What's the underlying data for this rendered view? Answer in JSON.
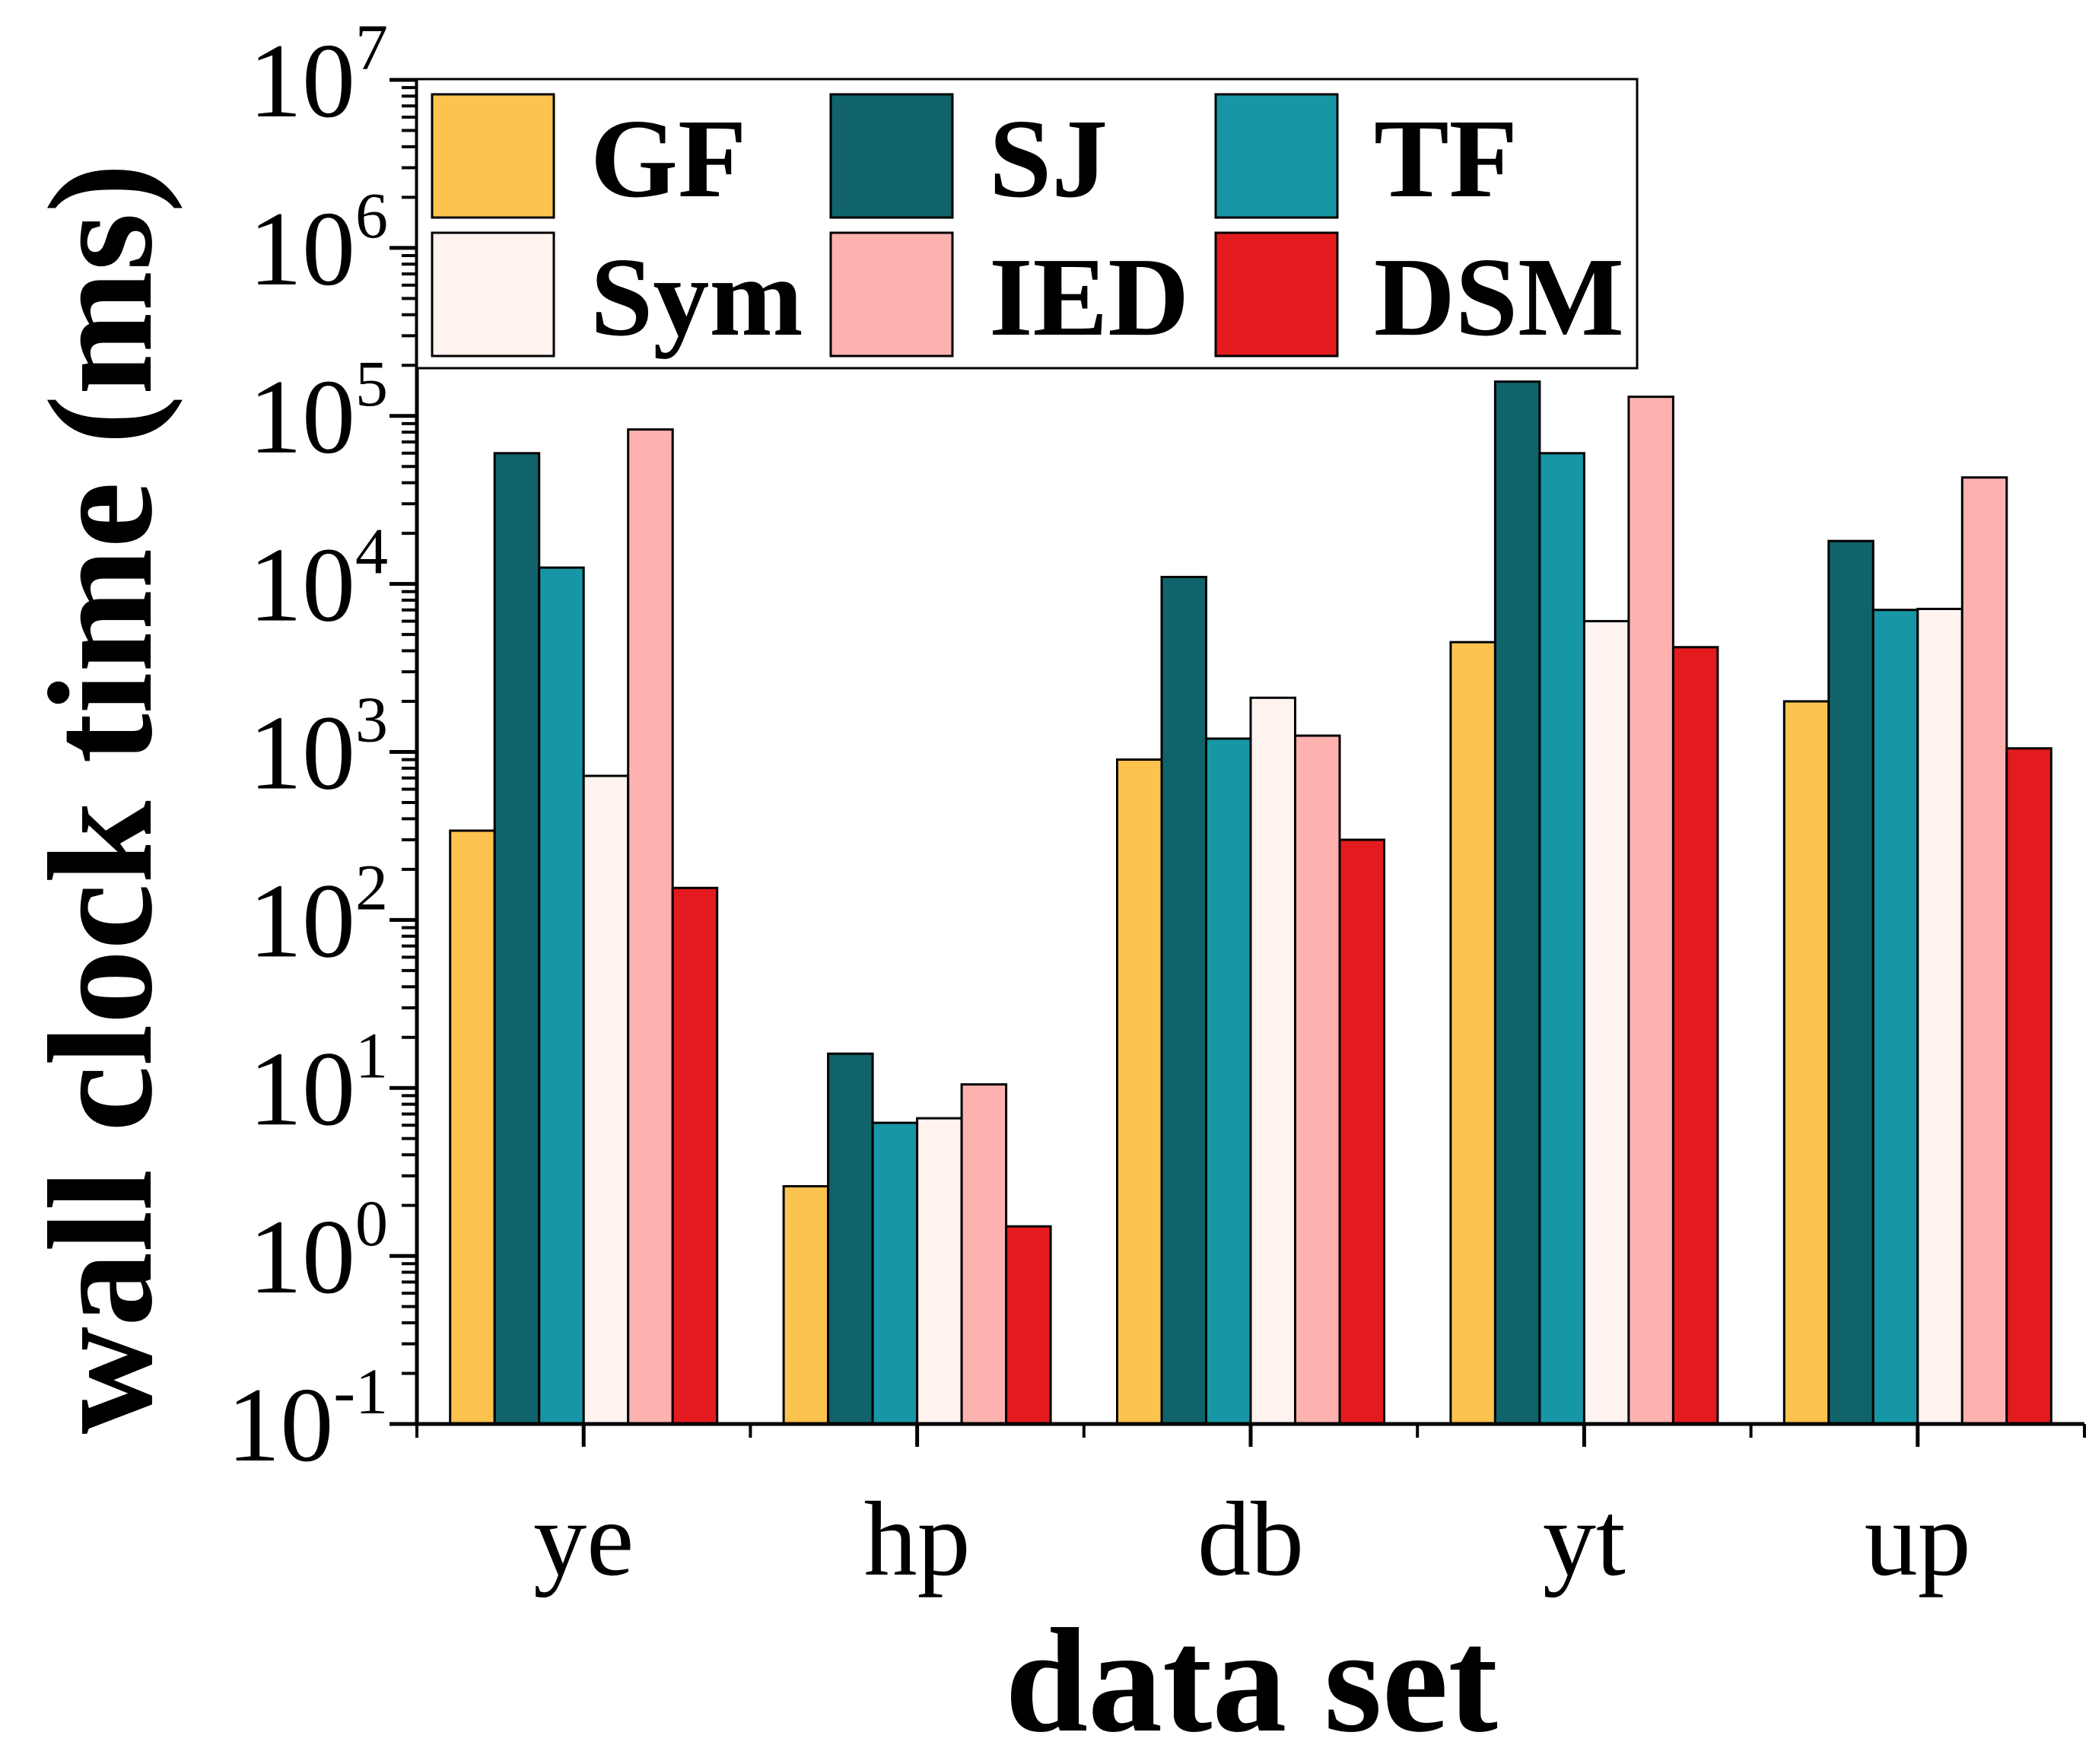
{
  "chart_data": {
    "type": "bar",
    "title": "",
    "xlabel": "data set",
    "ylabel": "wall clock time (ms)",
    "yscale": "log",
    "ylim": [
      0.1,
      10000000
    ],
    "ytick_labels": [
      {
        "base": "10",
        "exp": "-1",
        "value": 0.1
      },
      {
        "base": "10",
        "exp": "0",
        "value": 1
      },
      {
        "base": "10",
        "exp": "1",
        "value": 10
      },
      {
        "base": "10",
        "exp": "2",
        "value": 100
      },
      {
        "base": "10",
        "exp": "3",
        "value": 1000
      },
      {
        "base": "10",
        "exp": "4",
        "value": 10000
      },
      {
        "base": "10",
        "exp": "5",
        "value": 100000
      },
      {
        "base": "10",
        "exp": "6",
        "value": 1000000
      },
      {
        "base": "10",
        "exp": "7",
        "value": 10000000
      }
    ],
    "categories": [
      "ye",
      "hp",
      "db",
      "yt",
      "up"
    ],
    "legend_position": "top-left",
    "series": [
      {
        "name": "GF",
        "color": "#fdc34f",
        "values": [
          340,
          2.6,
          900,
          4500,
          2000
        ]
      },
      {
        "name": "SJ",
        "color": "#10636b",
        "values": [
          60000,
          16,
          11000,
          160000,
          18000
        ]
      },
      {
        "name": "TF",
        "color": "#1797a6",
        "values": [
          12500,
          6.2,
          1200,
          60000,
          7000
        ]
      },
      {
        "name": "Sym",
        "color": "#fff3f0",
        "values": [
          720,
          6.6,
          2100,
          6000,
          7100
        ]
      },
      {
        "name": "IED",
        "color": "#fdb2b0",
        "values": [
          83000,
          10.5,
          1250,
          130000,
          43000
        ]
      },
      {
        "name": "DSM",
        "color": "#e31b1f",
        "values": [
          155,
          1.5,
          300,
          4200,
          1050
        ]
      }
    ]
  }
}
